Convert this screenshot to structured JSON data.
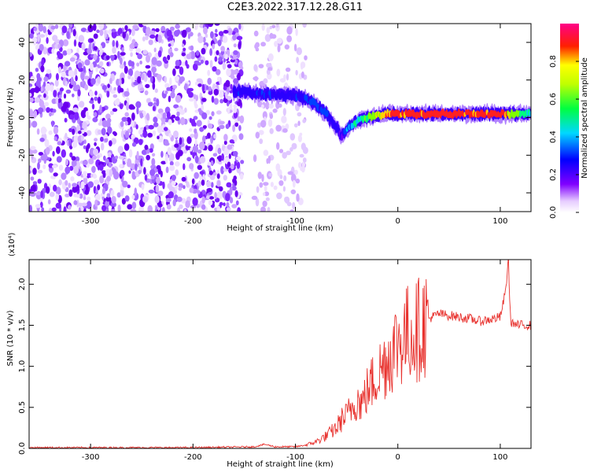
{
  "title": "C2E3.2022.317.12.28.G11",
  "chart_data": [
    {
      "type": "heatmap",
      "xlabel": "Height of straight line (km)",
      "ylabel": "Frequency (Hz)",
      "xlim": [
        -360,
        130
      ],
      "ylim": [
        -50,
        50
      ],
      "xticks": [
        -300,
        -200,
        -100,
        0,
        100
      ],
      "yticks": [
        -40,
        -20,
        0,
        20,
        40
      ],
      "colorbar": {
        "label": "Normalized spectral amplitude",
        "ticks": [
          0.0,
          0.2,
          0.4,
          0.6,
          0.8
        ],
        "range": [
          0,
          1
        ],
        "colormap": "rainbow (white-violet-blue-cyan-green-yellow-red-magenta)"
      },
      "signal_track": {
        "x": [
          -160,
          -140,
          -120,
          -100,
          -90,
          -80,
          -70,
          -60,
          -55,
          -50,
          -40,
          -30,
          -20,
          -10,
          0,
          20,
          50,
          80,
          100,
          130
        ],
        "frequency_hz": [
          14,
          13,
          12,
          12,
          10,
          7,
          2,
          -5,
          -10,
          -6,
          -2,
          0,
          1,
          2,
          2,
          2,
          2,
          2,
          2,
          2
        ],
        "amplitude": [
          0.35,
          0.4,
          0.35,
          0.35,
          0.4,
          0.45,
          0.4,
          0.35,
          0.3,
          0.5,
          0.6,
          0.7,
          0.8,
          0.85,
          0.9,
          0.9,
          0.9,
          0.88,
          0.9,
          0.6
        ]
      },
      "noise_regions": [
        {
          "x_range": [
            -360,
            -152
          ],
          "density": "high"
        },
        {
          "x_range": [
            -140,
            -90
          ],
          "density": "low"
        }
      ]
    },
    {
      "type": "line",
      "xlabel": "Height of straight line (km)",
      "ylabel": "SNR (10 * v/v)",
      "y_multiplier": "(x10⁴)",
      "xlim": [
        -360,
        130
      ],
      "ylim": [
        0,
        2.3
      ],
      "xticks": [
        -300,
        -200,
        -100,
        0,
        100
      ],
      "yticks": [
        0.0,
        0.5,
        1.0,
        1.5,
        2.0
      ],
      "series": [
        {
          "color": "#e8322e",
          "x": [
            -360,
            -300,
            -200,
            -140,
            -130,
            -120,
            -100,
            -90,
            -80,
            -70,
            -60,
            -55,
            -50,
            -45,
            -40,
            -35,
            -30,
            -25,
            -20,
            -15,
            -10,
            -5,
            0,
            5,
            10,
            20,
            30,
            40,
            50,
            60,
            70,
            80,
            90,
            100,
            105,
            108,
            110,
            115,
            120,
            130
          ],
          "values": [
            0.01,
            0.01,
            0.01,
            0.02,
            0.05,
            0.02,
            0.02,
            0.04,
            0.08,
            0.15,
            0.25,
            0.35,
            0.4,
            0.5,
            0.6,
            0.55,
            0.7,
            0.8,
            0.9,
            1.0,
            1.1,
            1.2,
            1.3,
            1.35,
            1.4,
            1.45,
            1.58,
            1.64,
            1.62,
            1.6,
            1.58,
            1.55,
            1.57,
            1.6,
            1.9,
            2.3,
            1.55,
            1.5,
            1.5,
            1.5
          ]
        }
      ]
    }
  ]
}
